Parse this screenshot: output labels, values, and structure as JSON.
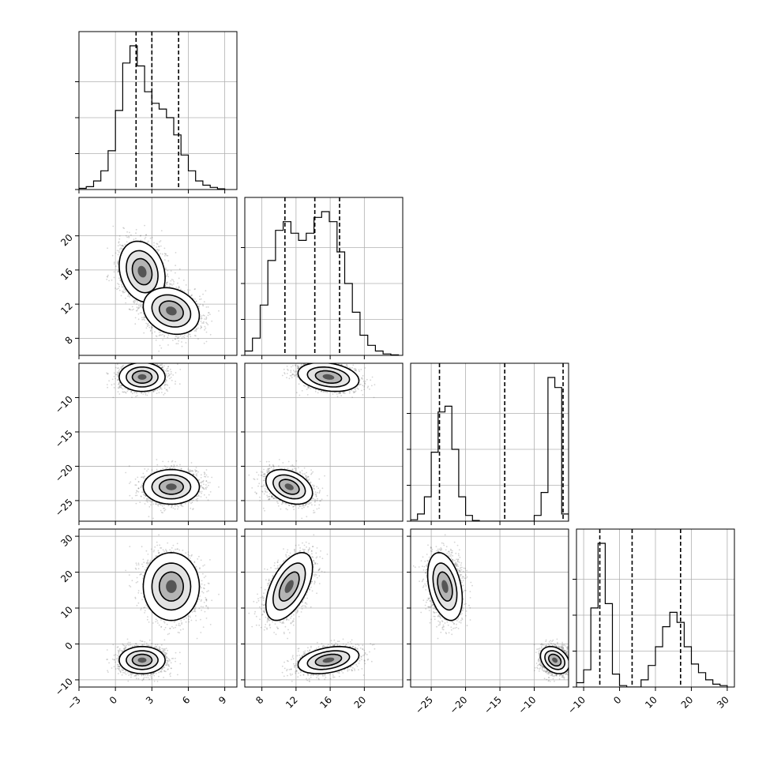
{
  "chart_data": {
    "type": "corner",
    "title": "",
    "parameters": [
      {
        "index": 0,
        "range": [
          -3,
          10
        ],
        "ticks": [
          -3,
          0,
          3,
          6,
          9
        ],
        "tick_labels": [
          "−3",
          "0",
          "3",
          "6",
          "9"
        ],
        "quantiles": [
          1.7,
          3.0,
          5.2
        ],
        "histogram": {
          "edges": [
            -3,
            -2.4,
            -1.8,
            -1.2,
            -0.6,
            0,
            0.6,
            1.2,
            1.8,
            2.4,
            3,
            3.6,
            4.2,
            4.8,
            5.4,
            6,
            6.6,
            7.2,
            7.8,
            8.4,
            9
          ],
          "counts": [
            0.008,
            0.02,
            0.06,
            0.13,
            0.27,
            0.55,
            0.88,
            1.0,
            0.86,
            0.68,
            0.6,
            0.56,
            0.5,
            0.38,
            0.24,
            0.13,
            0.06,
            0.03,
            0.015,
            0.005
          ]
        }
      },
      {
        "index": 1,
        "range": [
          6,
          24.5
        ],
        "ticks": [
          8,
          12,
          16,
          20
        ],
        "tick_labels": [
          "8",
          "12",
          "16",
          "20"
        ],
        "quantiles": [
          10.7,
          14.2,
          17.1
        ],
        "histogram": {
          "edges": [
            6,
            6.9,
            7.8,
            8.7,
            9.6,
            10.5,
            11.4,
            12.3,
            13.2,
            14.1,
            15,
            15.9,
            16.8,
            17.7,
            18.6,
            19.5,
            20.4,
            21.3,
            22.2,
            23.1,
            24
          ],
          "counts": [
            0.03,
            0.12,
            0.35,
            0.66,
            0.87,
            0.93,
            0.85,
            0.8,
            0.85,
            0.96,
            1.0,
            0.93,
            0.72,
            0.5,
            0.3,
            0.14,
            0.07,
            0.03,
            0.01,
            0.004
          ]
        }
      },
      {
        "index": 2,
        "range": [
          -28,
          -5
        ],
        "ticks": [
          -25,
          -20,
          -15,
          -10
        ],
        "tick_labels": [
          "−25",
          "−20",
          "−15",
          "−10"
        ],
        "quantiles": [
          -23.8,
          -14.3,
          -5.8
        ],
        "histogram": {
          "edges": [
            -28,
            -27,
            -26,
            -25,
            -24,
            -23,
            -22,
            -21,
            -20,
            -19,
            -18,
            -17,
            -16,
            -15,
            -14,
            -13,
            -12,
            -11,
            -10,
            -9,
            -8,
            -7,
            -6,
            -5
          ],
          "counts": [
            0.01,
            0.05,
            0.17,
            0.48,
            0.76,
            0.8,
            0.5,
            0.17,
            0.04,
            0.005,
            0,
            0,
            0,
            0,
            0,
            0,
            0,
            0,
            0.04,
            0.2,
            1.0,
            0.93,
            0.05
          ]
        }
      },
      {
        "index": 3,
        "range": [
          -12,
          32
        ],
        "ticks": [
          -10,
          0,
          10,
          20,
          30
        ],
        "tick_labels": [
          "−10",
          "0",
          "10",
          "20",
          "30"
        ],
        "quantiles": [
          -5.5,
          3.5,
          17.0
        ],
        "histogram": {
          "edges": [
            -12,
            -10,
            -8,
            -6,
            -4,
            -2,
            0,
            2,
            4,
            6,
            8,
            10,
            12,
            14,
            16,
            18,
            20,
            22,
            24,
            26,
            28,
            30
          ],
          "counts": [
            0.03,
            0.12,
            0.55,
            1.0,
            0.58,
            0.09,
            0.01,
            0,
            0,
            0.05,
            0.15,
            0.28,
            0.42,
            0.52,
            0.45,
            0.28,
            0.16,
            0.1,
            0.05,
            0.02,
            0.01
          ]
        }
      }
    ],
    "joint_modes": [
      {
        "weight": 0.5,
        "mean": [
          2.2,
          15.8,
          -7.0,
          -4.5
        ]
      },
      {
        "weight": 0.5,
        "mean": [
          4.6,
          11.2,
          -23.0,
          16.0
        ]
      }
    ]
  }
}
